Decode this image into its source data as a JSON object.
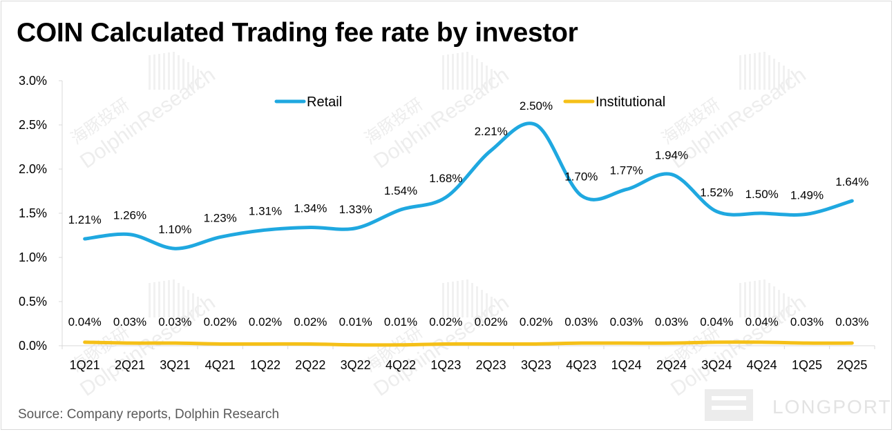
{
  "title": "COIN Calculated Trading fee rate by investor",
  "source": "Source: Company reports, Dolphin Research",
  "logo": {
    "text": "LONGPORT"
  },
  "watermark": {
    "text": "DolphinResearch",
    "text_cn": "海豚投研"
  },
  "colors": {
    "retail": "#1fa8e0",
    "institutional": "#f5c018",
    "axis": "#d9d9d9"
  },
  "chart_data": {
    "type": "line",
    "title": "COIN Calculated Trading fee rate by investor",
    "xlabel": "",
    "ylabel": "",
    "ylim": [
      0,
      3.0
    ],
    "y_ticks": [
      0,
      0.5,
      1.0,
      1.5,
      2.0,
      2.5,
      3.0
    ],
    "y_tick_labels": [
      "0.0%",
      "0.5%",
      "1.0%",
      "1.5%",
      "2.0%",
      "2.5%",
      "3.0%"
    ],
    "grid": false,
    "legend": "top-center",
    "smooth": true,
    "categories": [
      "1Q21",
      "2Q21",
      "3Q21",
      "4Q21",
      "1Q22",
      "2Q22",
      "3Q22",
      "4Q22",
      "1Q23",
      "2Q23",
      "3Q23",
      "4Q23",
      "1Q24",
      "2Q24",
      "3Q24",
      "4Q24",
      "1Q25",
      "2Q25"
    ],
    "series": [
      {
        "name": "Retail",
        "color": "#1fa8e0",
        "values": [
          1.21,
          1.26,
          1.1,
          1.23,
          1.31,
          1.34,
          1.33,
          1.54,
          1.68,
          2.21,
          2.5,
          1.7,
          1.77,
          1.94,
          1.52,
          1.5,
          1.49,
          1.64
        ],
        "labels": [
          "1.21%",
          "1.26%",
          "1.10%",
          "1.23%",
          "1.31%",
          "1.34%",
          "1.33%",
          "1.54%",
          "1.68%",
          "2.21%",
          "2.50%",
          "1.70%",
          "1.77%",
          "1.94%",
          "1.52%",
          "1.50%",
          "1.49%",
          "1.64%"
        ]
      },
      {
        "name": "Institutional",
        "color": "#f5c018",
        "values": [
          0.04,
          0.03,
          0.03,
          0.02,
          0.02,
          0.02,
          0.01,
          0.01,
          0.02,
          0.02,
          0.02,
          0.03,
          0.03,
          0.03,
          0.04,
          0.04,
          0.03,
          0.03
        ],
        "labels": [
          "0.04%",
          "0.03%",
          "0.03%",
          "0.02%",
          "0.02%",
          "0.02%",
          "0.01%",
          "0.01%",
          "0.02%",
          "0.02%",
          "0.02%",
          "0.03%",
          "0.03%",
          "0.03%",
          "0.04%",
          "0.04%",
          "0.03%",
          "0.03%"
        ]
      }
    ]
  }
}
